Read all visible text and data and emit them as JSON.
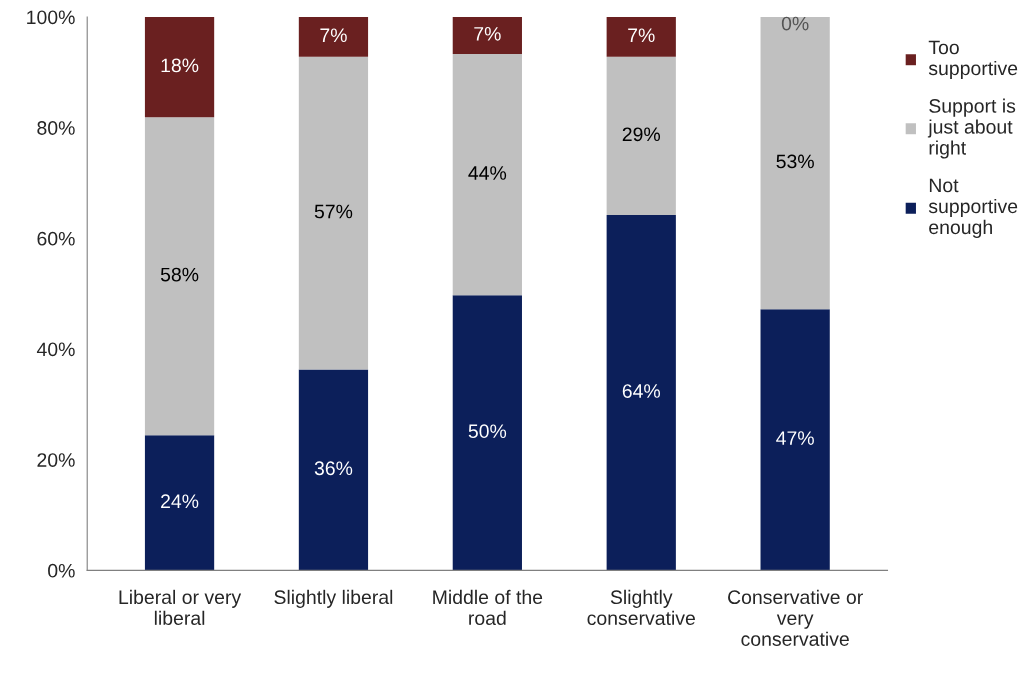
{
  "chart_data": {
    "type": "bar",
    "stacked": true,
    "categories": [
      "Liberal or very\nliberal",
      "Slightly liberal",
      "Middle of the\nroad",
      "Slightly\nconservative",
      "Conservative or\nvery\nconservative"
    ],
    "series": [
      {
        "name": "Not\nsupportive\nenough",
        "color": "#0c1f5a",
        "values": [
          24.4,
          36.3,
          49.7,
          64.2,
          47.2
        ],
        "value_labels": [
          "24%",
          "36%",
          "50%",
          "64%",
          "47%"
        ]
      },
      {
        "name": "Support is\njust about\nright",
        "color": "#c0c0c0",
        "values": [
          57.5,
          56.5,
          43.6,
          28.6,
          52.8
        ],
        "value_labels": [
          "58%",
          "57%",
          "44%",
          "29%",
          "53%"
        ]
      },
      {
        "name": "Too\nsupportive",
        "color": "#6a2020",
        "values": [
          18.1,
          7.2,
          6.7,
          7.2,
          0
        ],
        "value_labels": [
          "18%",
          "7%",
          "7%",
          "7%",
          "0%"
        ]
      }
    ],
    "ylim": [
      0,
      100
    ],
    "yticks": [
      {
        "value": 0,
        "label": "0%"
      },
      {
        "value": 20,
        "label": "20%"
      },
      {
        "value": 40,
        "label": "40%"
      },
      {
        "value": 60,
        "label": "60%"
      },
      {
        "value": 80,
        "label": "80%"
      },
      {
        "value": 100,
        "label": "100%"
      }
    ],
    "grid": false,
    "legend": "right"
  }
}
